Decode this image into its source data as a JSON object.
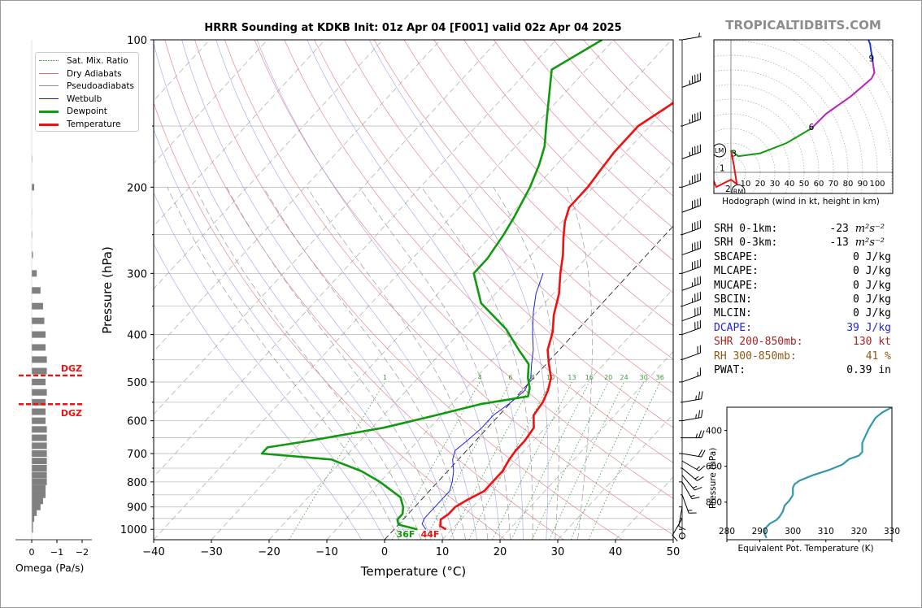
{
  "title": "HRRR Sounding at KDKB Init: 01z Apr 04 [F001] valid 02z Apr 04 2025",
  "watermark": "TROPICALTIDBITS.COM",
  "legend": [
    {
      "label": "Sat. Mix. Ratio",
      "color": "#2e8b2e",
      "style": "dotted"
    },
    {
      "label": "Dry Adiabats",
      "color": "#e0707a",
      "style": "solid"
    },
    {
      "label": "Pseudoadiabats",
      "color": "#8f8f8f",
      "style": "solid"
    },
    {
      "label": "Wetbulb",
      "color": "#1a1acc",
      "style": "solid"
    },
    {
      "label": "Dewpoint",
      "color": "#109c10",
      "style": "solid-thick"
    },
    {
      "label": "Temperature",
      "color": "#f01010",
      "style": "solid-thick"
    }
  ],
  "colors": {
    "temperature": "#ee1111",
    "dewpoint": "#119911",
    "wetbulb": "#2020dd",
    "dry_adiabat": "#e38a92",
    "moist_adiabat": "#9a9a9a",
    "mixing_ratio": "#3c9a3c",
    "isotherm_zero": "#222222",
    "dgz": "#ee1111",
    "omega_bar": "#808080",
    "hodo_0_3": "#ee1111",
    "hodo_3_6": "#109c10",
    "hodo_6_9": "#bb22bb",
    "hodo_9_12": "#1a3ae0",
    "thetae": "#3399aa",
    "dcape": "#2222dd",
    "shr": "#aa2222",
    "rh": "#8b5a1a"
  },
  "skewt": {
    "xlabel": "Temperature (°C)",
    "ylabel": "Pressure (hPa)",
    "x_ticks": [
      "−40",
      "−30",
      "−20",
      "−10",
      "0",
      "10",
      "20",
      "30",
      "40",
      "50"
    ],
    "p_ticks": [
      "100",
      "200",
      "300",
      "400",
      "500",
      "600",
      "700",
      "800",
      "900",
      "1000"
    ],
    "mixing_ratio_labels": [
      "1",
      "4",
      "6",
      "8",
      "10",
      "13",
      "16",
      "20",
      "24",
      "30",
      "36"
    ],
    "surface_dewpoint_label": "36F",
    "surface_temp_label": "44F",
    "dgz_label": "DGZ"
  },
  "chart_data": [
    {
      "type": "line",
      "title": "HRRR Sounding at KDKB Init: 01z Apr 04 [F001] valid 02z Apr 04 2025",
      "xlabel": "Temperature (°C)",
      "ylabel": "Pressure (hPa)",
      "xlim": [
        -40,
        50
      ],
      "ylim": [
        1050,
        100
      ],
      "y_scale": "log",
      "x_axis": "skewed",
      "series": [
        {
          "name": "Temperature",
          "points": [
            [
              1000,
              9
            ],
            [
              985,
              7.5
            ],
            [
              955,
              6.5
            ],
            [
              930,
              7
            ],
            [
              900,
              7
            ],
            [
              870,
              8
            ],
            [
              835,
              9.5
            ],
            [
              800,
              9.5
            ],
            [
              760,
              9.5
            ],
            [
              720,
              8.8
            ],
            [
              690,
              8.5
            ],
            [
              660,
              8.5
            ],
            [
              620,
              8
            ],
            [
              585,
              6
            ],
            [
              550,
              5.5
            ],
            [
              520,
              4.5
            ],
            [
              490,
              3
            ],
            [
              460,
              0.5
            ],
            [
              430,
              -2
            ],
            [
              395,
              -4
            ],
            [
              365,
              -6.5
            ],
            [
              330,
              -9
            ],
            [
              300,
              -12
            ],
            [
              275,
              -14.5
            ],
            [
              255,
              -17
            ],
            [
              235,
              -19.5
            ],
            [
              220,
              -21
            ],
            [
              200,
              -21
            ],
            [
              185,
              -21.5
            ],
            [
              170,
              -22
            ],
            [
              150,
              -22
            ],
            [
              125,
              -18
            ],
            [
              100,
              -10
            ]
          ]
        },
        {
          "name": "Dewpoint",
          "points": [
            [
              1000,
              4
            ],
            [
              978,
              0
            ],
            [
              955,
              -1
            ],
            [
              930,
              -1
            ],
            [
              900,
              -2
            ],
            [
              880,
              -3
            ],
            [
              860,
              -4
            ],
            [
              800,
              -10
            ],
            [
              760,
              -15
            ],
            [
              720,
              -22
            ],
            [
              700,
              -35
            ],
            [
              680,
              -35
            ],
            [
              660,
              -29
            ],
            [
              620,
              -18
            ],
            [
              585,
              -11
            ],
            [
              555,
              -5
            ],
            [
              535,
              2
            ],
            [
              515,
              1
            ],
            [
              490,
              -1
            ],
            [
              460,
              -3
            ],
            [
              430,
              -7
            ],
            [
              390,
              -12.5
            ],
            [
              345,
              -21
            ],
            [
              300,
              -27
            ],
            [
              280,
              -27
            ],
            [
              250,
              -28
            ],
            [
              230,
              -29
            ],
            [
              200,
              -31
            ],
            [
              180,
              -33
            ],
            [
              165,
              -35
            ],
            [
              145,
              -39
            ],
            [
              115,
              -46
            ],
            [
              100,
              -42
            ]
          ]
        },
        {
          "name": "Wetbulb",
          "points": [
            [
              1000,
              5.5
            ],
            [
              975,
              4
            ],
            [
              950,
              3.5
            ],
            [
              925,
              3.5
            ],
            [
              900,
              3.5
            ],
            [
              870,
              3.5
            ],
            [
              835,
              3.5
            ],
            [
              800,
              2.5
            ],
            [
              760,
              1
            ],
            [
              720,
              -1
            ],
            [
              690,
              -2
            ],
            [
              660,
              -1.5
            ],
            [
              620,
              -1
            ],
            [
              585,
              -1
            ],
            [
              550,
              0
            ],
            [
              520,
              0.5
            ],
            [
              490,
              -0.5
            ],
            [
              460,
              -2.5
            ],
            [
              430,
              -4.5
            ],
            [
              395,
              -7.5
            ],
            [
              360,
              -10.5
            ],
            [
              330,
              -13
            ],
            [
              300,
              -15
            ]
          ]
        }
      ],
      "dry_adiabats_theta_K": [
        290,
        300,
        310,
        320,
        330,
        340,
        350,
        360,
        370,
        380,
        390,
        400,
        410,
        420,
        430,
        440,
        450
      ],
      "moist_adiabats_thetaw_C": [
        0,
        4,
        8,
        12,
        16,
        20,
        24,
        28,
        32
      ],
      "mixing_ratios_gkg": [
        1,
        4,
        6,
        8,
        10,
        13,
        16,
        20,
        24,
        30,
        36
      ],
      "isotherm_zero": true,
      "grid": true,
      "legend_position": "upper-left"
    },
    {
      "type": "bar",
      "orientation": "horizontal",
      "xlabel": "Omega (Pa/s)",
      "xlim": [
        0,
        -2
      ],
      "x_ticks": [
        "0",
        "−1",
        "−2"
      ],
      "levels_hPa": [
        1000,
        975,
        950,
        925,
        900,
        875,
        850,
        825,
        800,
        775,
        750,
        725,
        700,
        675,
        650,
        625,
        600,
        575,
        550,
        525,
        500,
        475,
        450,
        425,
        400,
        375,
        350,
        325,
        300,
        275,
        250,
        225,
        200,
        175
      ],
      "values": [
        -0.05,
        -0.05,
        -0.1,
        -0.2,
        -0.35,
        -0.45,
        -0.55,
        -0.55,
        -0.6,
        -0.6,
        -0.6,
        -0.6,
        -0.6,
        -0.6,
        -0.6,
        -0.6,
        -0.55,
        -0.55,
        -0.55,
        -0.6,
        -0.55,
        -0.6,
        -0.6,
        -0.55,
        -0.55,
        -0.5,
        -0.45,
        -0.35,
        -0.2,
        -0.05,
        -0.02,
        -0.01,
        -0.1,
        -0.02
      ],
      "dgz_hPa": [
        485,
        555
      ]
    },
    {
      "type": "line",
      "title": "Hodograph (wind in kt, height in km)",
      "ring_labels": [
        "10",
        "20",
        "30",
        "40",
        "50",
        "60",
        "70",
        "80",
        "90",
        "100"
      ],
      "height_labels": [
        "1",
        "2",
        "3",
        "6",
        "9"
      ],
      "storm_motion_labels": [
        "LM",
        "RM"
      ],
      "series": [
        {
          "name": "0-3 km",
          "points": [
            [
              -16,
              4
            ],
            [
              -10,
              -10
            ],
            [
              0,
              -5
            ],
            [
              4,
              -8
            ],
            [
              2,
              5
            ],
            [
              0,
              15
            ]
          ]
        },
        {
          "name": "3-6 km",
          "points": [
            [
              0,
              15
            ],
            [
              5,
              11
            ],
            [
              20,
              13
            ],
            [
              38,
              20
            ],
            [
              55,
              30
            ]
          ]
        },
        {
          "name": "6-9 km",
          "points": [
            [
              55,
              30
            ],
            [
              65,
              40
            ],
            [
              82,
              52
            ],
            [
              96,
              64
            ],
            [
              98,
              68
            ],
            [
              97,
              75
            ]
          ]
        },
        {
          "name": "9-12 km",
          "points": [
            [
              97,
              75
            ],
            [
              95,
              88
            ],
            [
              90,
              100
            ],
            [
              89,
              93
            ],
            [
              85,
              96
            ],
            [
              80,
              110
            ]
          ]
        }
      ],
      "height_marker_points": [
        [
          -6,
          3
        ],
        [
          -2,
          -11
        ],
        [
          2,
          13
        ],
        [
          55,
          31
        ],
        [
          96,
          78
        ]
      ],
      "lm_point": [
        -8,
        15
      ],
      "rm_point": [
        5,
        -13
      ]
    },
    {
      "type": "line",
      "xlabel": "Equivalent Pot. Temperature (K)",
      "ylabel": "Pressure (hPa)",
      "xlim": [
        280,
        330
      ],
      "x_ticks": [
        "280",
        "290",
        "300",
        "310",
        "320",
        "330"
      ],
      "y_ticks": [
        "400",
        "600",
        "800"
      ],
      "ylim": [
        1010,
        270
      ],
      "series": [
        {
          "name": "Theta-E",
          "points": [
            [
              1000,
              292
            ],
            [
              980,
              291.5
            ],
            [
              950,
              291.5
            ],
            [
              920,
              293
            ],
            [
              900,
              295
            ],
            [
              880,
              296
            ],
            [
              850,
              297
            ],
            [
              820,
              297.5
            ],
            [
              790,
              299
            ],
            [
              760,
              300
            ],
            [
              720,
              300
            ],
            [
              700,
              300.5
            ],
            [
              680,
              302
            ],
            [
              650,
              306
            ],
            [
              620,
              311
            ],
            [
              590,
              315
            ],
            [
              560,
              317
            ],
            [
              540,
              320
            ],
            [
              520,
              321
            ],
            [
              500,
              321
            ],
            [
              470,
              321
            ],
            [
              450,
              321.5
            ],
            [
              430,
              322
            ],
            [
              410,
              322.5
            ],
            [
              390,
              323
            ],
            [
              360,
              324
            ],
            [
              330,
              325
            ],
            [
              300,
              327
            ],
            [
              280,
              329
            ],
            [
              270,
              330
            ]
          ]
        }
      ]
    }
  ],
  "hodograph": {
    "caption": "Hodograph (wind in kt, height in km)"
  },
  "params": [
    {
      "name": "SRH 0-1km:",
      "value": "-23",
      "unit_html": "m²s⁻²",
      "color": "#000000"
    },
    {
      "name": "SRH 0-3km:",
      "value": "-13",
      "unit_html": "m²s⁻²",
      "color": "#000000"
    },
    {
      "name": "SBCAPE:",
      "value": "0 J/kg",
      "unit_html": "",
      "color": "#000000"
    },
    {
      "name": "MLCAPE:",
      "value": "0 J/kg",
      "unit_html": "",
      "color": "#000000"
    },
    {
      "name": "MUCAPE:",
      "value": "0 J/kg",
      "unit_html": "",
      "color": "#000000"
    },
    {
      "name": "SBCIN:",
      "value": "0 J/kg",
      "unit_html": "",
      "color": "#000000"
    },
    {
      "name": "MLCIN:",
      "value": "0 J/kg",
      "unit_html": "",
      "color": "#000000"
    },
    {
      "name": "DCAPE:",
      "value": "39 J/kg",
      "unit_html": "",
      "color": "#2222dd"
    },
    {
      "name": "SHR 200-850mb:",
      "value": "130 kt",
      "unit_html": "",
      "color": "#aa2222"
    },
    {
      "name": "RH 300-850mb:",
      "value": "41 %",
      "unit_html": "",
      "color": "#8b5a1a"
    },
    {
      "name": "PWAT:",
      "value": "0.39 in",
      "unit_html": "",
      "color": "#000000"
    }
  ],
  "winds": [
    {
      "p": 100,
      "spd": 5,
      "dir": 260
    },
    {
      "p": 125,
      "spd": 45,
      "dir": 250
    },
    {
      "p": 150,
      "spd": 45,
      "dir": 250
    },
    {
      "p": 175,
      "spd": 45,
      "dir": 250
    },
    {
      "p": 200,
      "spd": 45,
      "dir": 250
    },
    {
      "p": 225,
      "spd": 40,
      "dir": 250
    },
    {
      "p": 250,
      "spd": 40,
      "dir": 250
    },
    {
      "p": 275,
      "spd": 40,
      "dir": 250
    },
    {
      "p": 300,
      "spd": 40,
      "dir": 250
    },
    {
      "p": 325,
      "spd": 35,
      "dir": 250
    },
    {
      "p": 350,
      "spd": 35,
      "dir": 250
    },
    {
      "p": 375,
      "spd": 30,
      "dir": 250
    },
    {
      "p": 400,
      "spd": 30,
      "dir": 250
    },
    {
      "p": 450,
      "spd": 20,
      "dir": 250
    },
    {
      "p": 500,
      "spd": 15,
      "dir": 250
    },
    {
      "p": 550,
      "spd": 25,
      "dir": 260
    },
    {
      "p": 600,
      "spd": 25,
      "dir": 260
    },
    {
      "p": 650,
      "spd": 25,
      "dir": 270
    },
    {
      "p": 700,
      "spd": 20,
      "dir": 280
    },
    {
      "p": 725,
      "spd": 15,
      "dir": 300
    },
    {
      "p": 750,
      "spd": 15,
      "dir": 310
    },
    {
      "p": 775,
      "spd": 15,
      "dir": 320
    },
    {
      "p": 800,
      "spd": 15,
      "dir": 330
    },
    {
      "p": 850,
      "spd": 15,
      "dir": 340
    },
    {
      "p": 900,
      "spd": 10,
      "dir": 10
    },
    {
      "p": 950,
      "spd": 10,
      "dir": 30
    },
    {
      "p": 1000,
      "spd": 0,
      "dir": 0
    }
  ]
}
